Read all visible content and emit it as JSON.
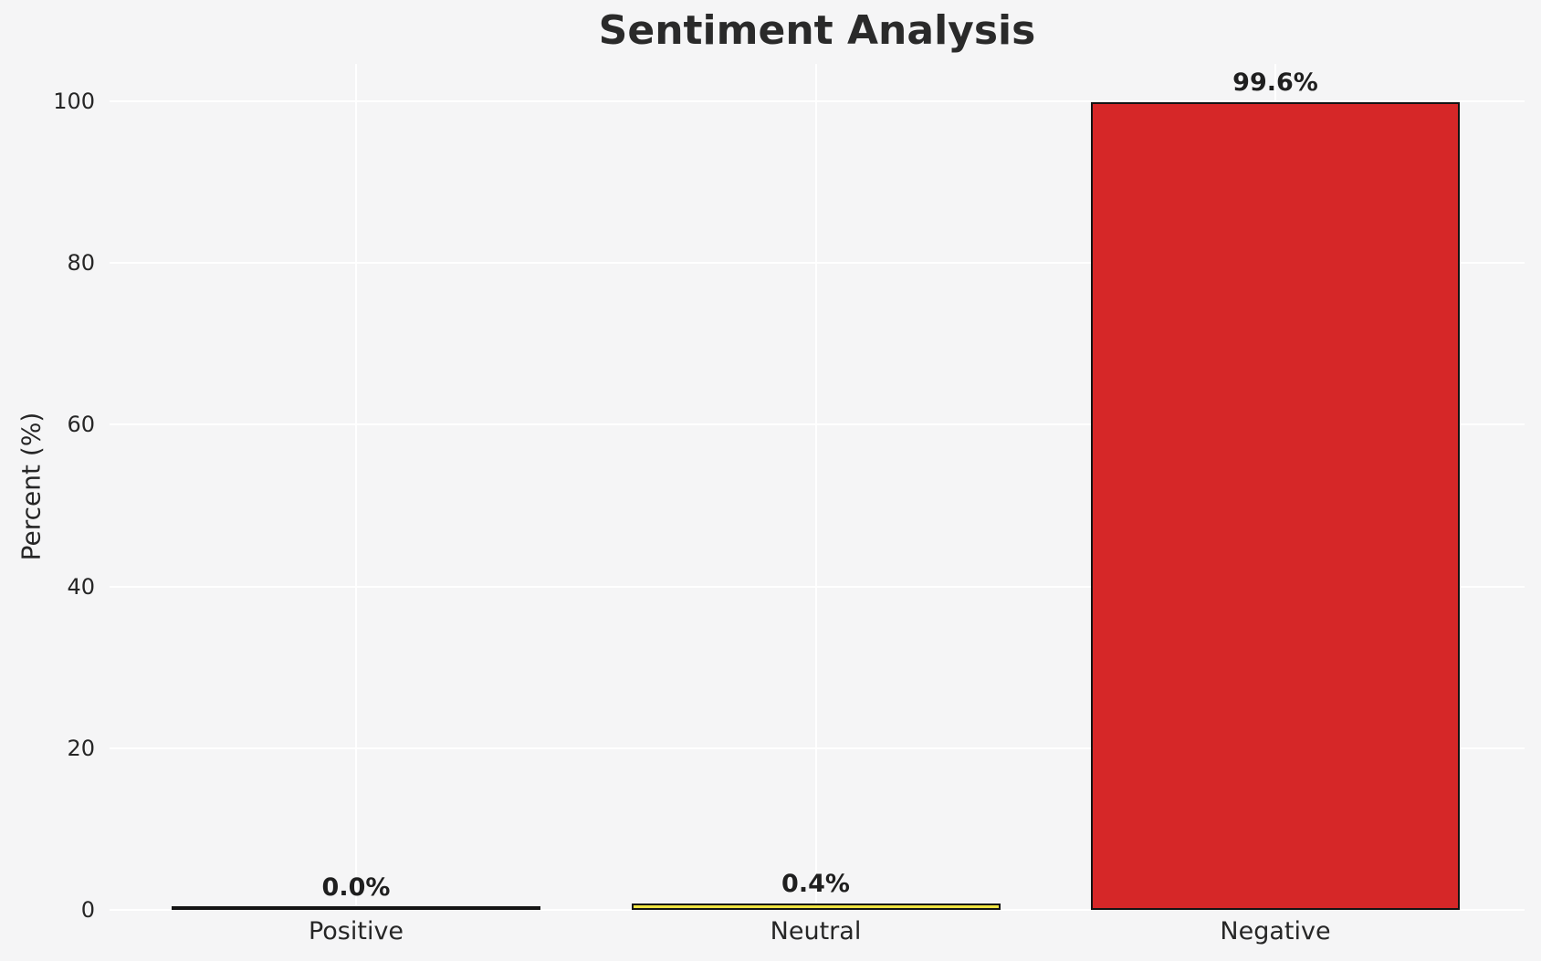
{
  "figure": {
    "background_color": "#f5f5f6",
    "grid_color": "#ffffff",
    "text_color": "#262626"
  },
  "chart_data": {
    "type": "bar",
    "title": "Sentiment Analysis",
    "xlabel": "",
    "ylabel": "Percent (%)",
    "categories": [
      "Positive",
      "Neutral",
      "Negative"
    ],
    "values": [
      0.0,
      0.4,
      99.6
    ],
    "bar_labels": [
      "0.0%",
      "0.4%",
      "99.6%"
    ],
    "bar_colors": [
      "#2ca02c",
      "#f0e442",
      "#d62728"
    ],
    "bar_edge_color": "#141414",
    "yticks": [
      0,
      20,
      40,
      60,
      80,
      100
    ],
    "ytick_labels": [
      "0",
      "20",
      "40",
      "60",
      "80",
      "100"
    ],
    "ylim": [
      0,
      104.6
    ],
    "grid": true,
    "grid_axes": "both",
    "legend": false
  }
}
